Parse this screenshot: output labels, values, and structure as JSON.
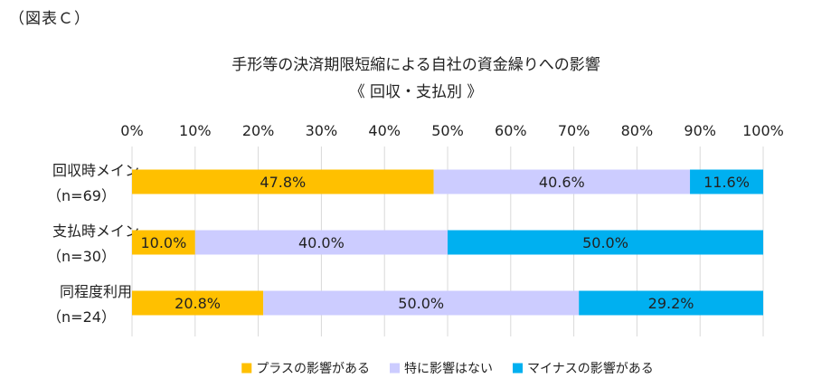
{
  "figure_label": "（図表Ｃ）",
  "chart_data": {
    "type": "bar",
    "orientation": "horizontal",
    "stacked": true,
    "title": "手形等の決済期限短縮による自社の資金繰りへの影響",
    "subtitle": "《 回収・支払別 》",
    "xlim": [
      0,
      100
    ],
    "x_ticks": [
      "0%",
      "10%",
      "20%",
      "30%",
      "40%",
      "50%",
      "60%",
      "70%",
      "80%",
      "90%",
      "100%"
    ],
    "categories": [
      {
        "name": "回収時メイン",
        "n": "（n=69）"
      },
      {
        "name": "支払時メイン",
        "n": "（n=30）"
      },
      {
        "name": "同程度利用",
        "n": "（n=24）"
      }
    ],
    "series": [
      {
        "name": "プラスの影響がある",
        "color": "#FFC000",
        "values": [
          47.8,
          10.0,
          20.8
        ],
        "labels": [
          "47.8%",
          "10.0%",
          "20.8%"
        ]
      },
      {
        "name": "特に影響はない",
        "color": "#CCCCFF",
        "values": [
          40.6,
          40.0,
          50.0
        ],
        "labels": [
          "40.6%",
          "40.0%",
          "50.0%"
        ]
      },
      {
        "name": "マイナスの影響がある",
        "color": "#00B0F0",
        "values": [
          11.6,
          50.0,
          29.2
        ],
        "labels": [
          "11.6%",
          "50.0%",
          "29.2%"
        ]
      }
    ],
    "grid": true,
    "legend_position": "bottom"
  }
}
